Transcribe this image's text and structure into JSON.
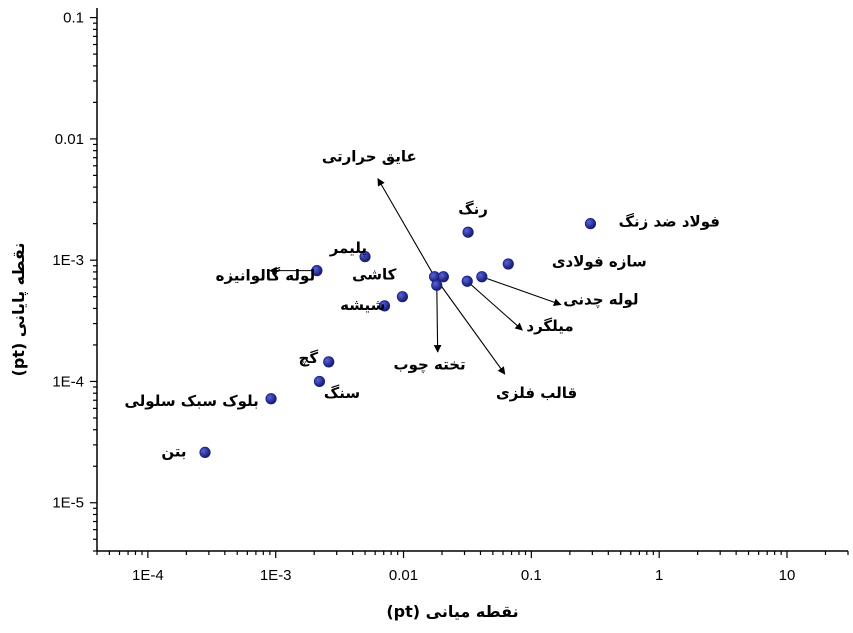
{
  "chart_data": {
    "type": "scatter",
    "xlabel": "نقطه میانی (pt)",
    "ylabel": "نقطه پایانی (pt)",
    "x_scale": "log",
    "y_scale": "log",
    "xlim": [
      4e-05,
      30
    ],
    "ylim": [
      4e-06,
      0.12
    ],
    "x_ticks": [
      {
        "value": 0.0001,
        "label": "1E-4"
      },
      {
        "value": 0.001,
        "label": "1E-3"
      },
      {
        "value": 0.01,
        "label": "0.01"
      },
      {
        "value": 0.1,
        "label": "0.1"
      },
      {
        "value": 1,
        "label": "1"
      },
      {
        "value": 10,
        "label": "10"
      }
    ],
    "y_ticks": [
      {
        "value": 1e-05,
        "label": "1E-5"
      },
      {
        "value": 0.0001,
        "label": "1E-4"
      },
      {
        "value": 0.001,
        "label": "1E-3"
      },
      {
        "value": 0.01,
        "label": "0.01"
      },
      {
        "value": 0.1,
        "label": "0.1"
      }
    ],
    "marker_color": "#1a1f8f",
    "points": [
      {
        "x": 0.00028,
        "y": 2.6e-05
      },
      {
        "x": 0.00092,
        "y": 7.2e-05
      },
      {
        "x": 0.0022,
        "y": 0.0001
      },
      {
        "x": 0.0026,
        "y": 0.000145
      },
      {
        "x": 0.0021,
        "y": 0.00082
      },
      {
        "x": 0.005,
        "y": 0.00107
      },
      {
        "x": 0.0071,
        "y": 0.00042
      },
      {
        "x": 0.0098,
        "y": 0.0005
      },
      {
        "x": 0.0175,
        "y": 0.00073
      },
      {
        "x": 0.0205,
        "y": 0.00073
      },
      {
        "x": 0.0182,
        "y": 0.00062
      },
      {
        "x": 0.0315,
        "y": 0.00067
      },
      {
        "x": 0.032,
        "y": 0.0017
      },
      {
        "x": 0.041,
        "y": 0.00073
      },
      {
        "x": 0.066,
        "y": 0.00093
      },
      {
        "x": 0.29,
        "y": 0.002
      }
    ],
    "annotations": [
      {
        "text": "بتن",
        "x": 0.00016,
        "y": 2.4e-05
      },
      {
        "text": "بلوک سبک سلولی",
        "x": 0.00022,
        "y": 6.3e-05
      },
      {
        "text": "سنگ",
        "x": 0.0033,
        "y": 7.3e-05
      },
      {
        "text": "گچ",
        "x": 0.0018,
        "y": 0.000142
      },
      {
        "text": "شیشه",
        "x": 0.0048,
        "y": 0.00039
      },
      {
        "text": "کاشی",
        "x": 0.0059,
        "y": 0.00069
      },
      {
        "text": "پلیمر",
        "x": 0.0037,
        "y": 0.00115
      },
      {
        "text": "لوله گالوانیزه",
        "x": 0.00083,
        "y": 0.00068
      },
      {
        "text": "عایق حرارتی",
        "x": 0.0054,
        "y": 0.0065
      },
      {
        "text": "رنگ",
        "x": 0.035,
        "y": 0.0024
      },
      {
        "text": "فولاد ضد زنگ",
        "x": 1.2,
        "y": 0.0019
      },
      {
        "text": "سازه فولادی",
        "x": 0.34,
        "y": 0.00089
      },
      {
        "text": "لوله چدنی",
        "x": 0.35,
        "y": 0.00043
      },
      {
        "text": "میلگرد",
        "x": 0.14,
        "y": 0.00026
      },
      {
        "text": "تخته چوب",
        "x": 0.016,
        "y": 0.000125
      },
      {
        "text": "قالب فلزی",
        "x": 0.11,
        "y": 7.3e-05
      }
    ],
    "arrows": [
      {
        "x1": 0.0021,
        "y1": 0.00082,
        "x2": 0.0009,
        "y2": 0.00082
      },
      {
        "x1": 0.0175,
        "y1": 0.00073,
        "x2": 0.0063,
        "y2": 0.0047
      },
      {
        "x1": 0.0182,
        "y1": 0.00062,
        "x2": 0.0185,
        "y2": 0.000175
      },
      {
        "x1": 0.0175,
        "y1": 0.00073,
        "x2": 0.062,
        "y2": 0.000115
      },
      {
        "x1": 0.0315,
        "y1": 0.00067,
        "x2": 0.085,
        "y2": 0.000265
      },
      {
        "x1": 0.041,
        "y1": 0.00073,
        "x2": 0.17,
        "y2": 0.00043
      }
    ]
  }
}
